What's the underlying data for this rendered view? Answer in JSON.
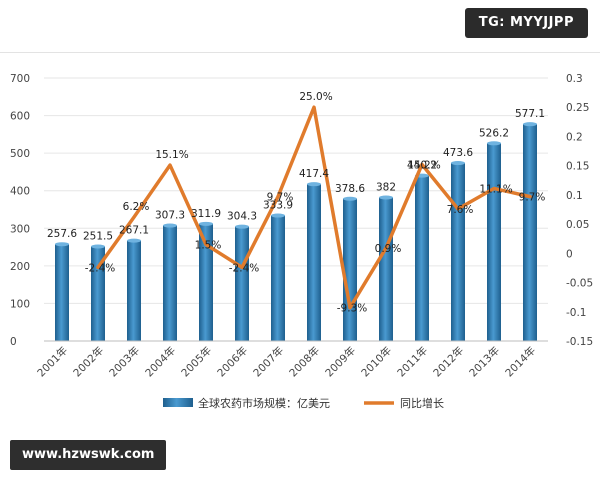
{
  "watermark_top": "TG: MYYJJPP",
  "watermark_bottom": "www.hzwswk.com",
  "colors": {
    "bar": "#2f7fb8",
    "bar_dark": "#1e5f8e",
    "line": "#e07b2c",
    "grid": "#e6e6e6"
  },
  "chart_data": {
    "type": "bar+line",
    "categories": [
      "2001年",
      "2002年",
      "2003年",
      "2004年",
      "2005年",
      "2006年",
      "2007年",
      "2008年",
      "2009年",
      "2010年",
      "2011年",
      "2012年",
      "2013年",
      "2014年"
    ],
    "series": [
      {
        "name": "全球农药市场规模：亿美元",
        "type": "bar",
        "axis": "left",
        "values": [
          257.6,
          251.5,
          267.1,
          307.3,
          311.9,
          304.3,
          333.9,
          417.4,
          378.6,
          382,
          440.2,
          473.6,
          526.2,
          577.1
        ],
        "labels": [
          "257.6",
          "251.5",
          "267.1",
          "307.3",
          "311.9",
          "304.3",
          "333.9",
          "417.4",
          "378.6",
          "382",
          "440.2",
          "473.6",
          "526.2",
          "577.1"
        ]
      },
      {
        "name": "同比增长",
        "type": "line",
        "axis": "right",
        "values": [
          null,
          -0.024,
          0.062,
          0.151,
          0.015,
          -0.024,
          0.097,
          0.25,
          -0.093,
          0.009,
          0.152,
          0.076,
          0.111,
          0.097
        ],
        "labels": [
          "",
          "-2.4%",
          "6.2%",
          "15.1%",
          "1.5%",
          "-2.4%",
          "9.7%",
          "25.0%",
          "-9.3%",
          "0.9%",
          "15.2%",
          "7.6%",
          "11.1%",
          "9.7%"
        ]
      }
    ],
    "y_left": {
      "min": 0,
      "max": 700,
      "ticks": [
        "0",
        "100",
        "200",
        "300",
        "400",
        "500",
        "600",
        "700"
      ]
    },
    "y_right": {
      "min": -0.15,
      "max": 0.3,
      "ticks": [
        "-0.15",
        "-0.1",
        "-0.05",
        "0",
        "0.05",
        "0.1",
        "0.15",
        "0.2",
        "0.25",
        "0.3"
      ]
    },
    "legend": {
      "position": "bottom",
      "items": [
        "全球农药市场规模：亿美元",
        "同比增长"
      ]
    }
  }
}
